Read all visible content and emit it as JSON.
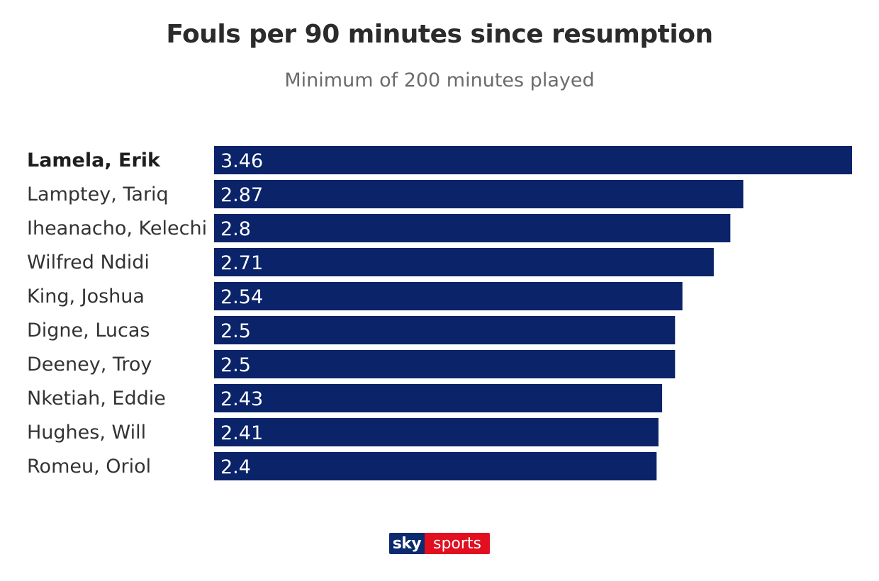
{
  "chart_data": {
    "type": "bar",
    "orientation": "horizontal",
    "title": "Fouls per 90 minutes since resumption",
    "subtitle": "Minimum of 200 minutes played",
    "categories": [
      "Lamela, Erik",
      "Lamptey, Tariq",
      "Iheanacho, Kelechi",
      "Wilfred Ndidi",
      "King, Joshua",
      "Digne, Lucas",
      "Deeney, Troy",
      "Nketiah, Eddie",
      "Hughes, Will",
      "Romeu, Oriol"
    ],
    "values": [
      3.46,
      2.87,
      2.8,
      2.71,
      2.54,
      2.5,
      2.5,
      2.43,
      2.41,
      2.4
    ],
    "value_labels": [
      "3.46",
      "2.87",
      "2.8",
      "2.71",
      "2.54",
      "2.5",
      "2.5",
      "2.43",
      "2.41",
      "2.4"
    ],
    "highlighted_category": "Lamela, Erik",
    "xlim": [
      0,
      3.46
    ],
    "grid": false,
    "legend": "none",
    "bar_color": "#0a2369",
    "label_color": "#ffffff"
  },
  "branding": {
    "logo_sky": "sky",
    "logo_sports": "sports",
    "sky_color": "#0c2a6e",
    "sports_color": "#e10f1f"
  }
}
